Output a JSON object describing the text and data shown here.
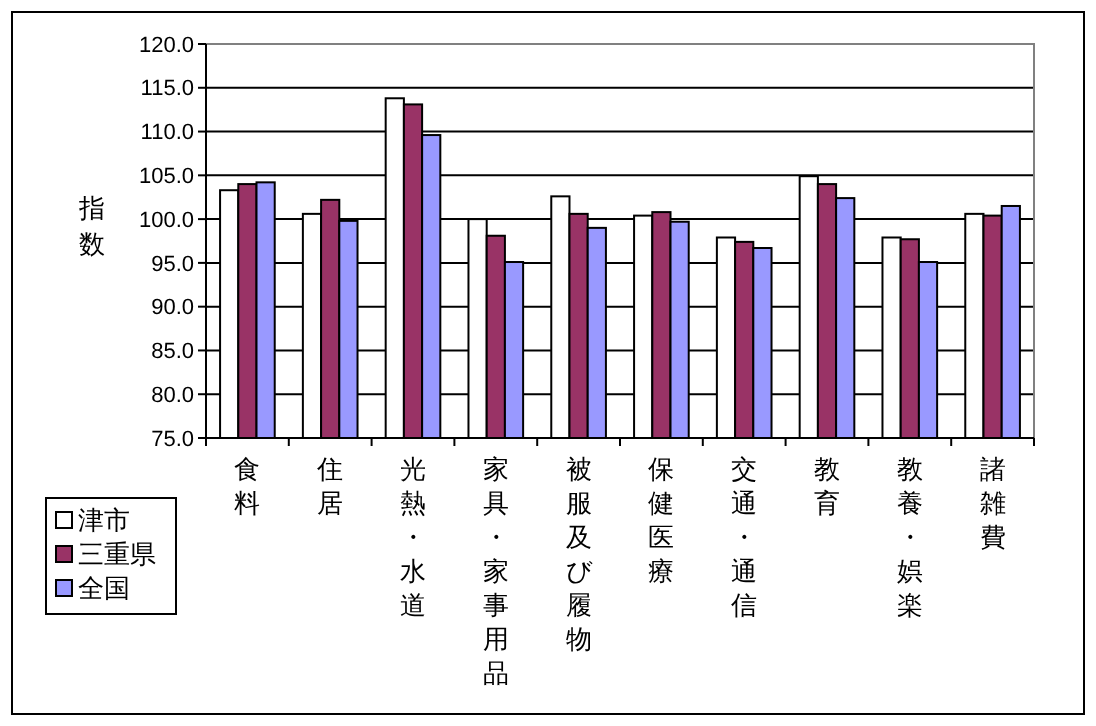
{
  "chart_data": {
    "type": "bar",
    "ylabel": "指数",
    "categories": [
      "食料",
      "住居",
      "光熱・水道",
      "家具・家事用品",
      "被服及び履物",
      "保健医療",
      "交通・通信",
      "教育",
      "教養・娯楽",
      "諸雑費"
    ],
    "series": [
      {
        "name": "津市",
        "color": "#ffffff",
        "values": [
          103.3,
          100.6,
          113.8,
          100.0,
          102.6,
          100.4,
          97.9,
          104.9,
          97.9,
          100.6
        ]
      },
      {
        "name": "三重県",
        "color": "#993366",
        "values": [
          104.0,
          102.2,
          113.1,
          98.1,
          100.6,
          100.8,
          97.4,
          104.0,
          97.7,
          100.4
        ]
      },
      {
        "name": "全国",
        "color": "#9999ff",
        "values": [
          104.2,
          99.8,
          109.6,
          95.1,
          99.0,
          99.7,
          96.7,
          102.4,
          95.1,
          101.5
        ]
      }
    ],
    "ylim": [
      75,
      120
    ],
    "yticks": [
      {
        "value": 75,
        "label": "75.0"
      },
      {
        "value": 80,
        "label": "80.0"
      },
      {
        "value": 85,
        "label": "85.0"
      },
      {
        "value": 90,
        "label": "90.0"
      },
      {
        "value": 95,
        "label": "95.0"
      },
      {
        "value": 100,
        "label": "100.0"
      },
      {
        "value": 105,
        "label": "105.0"
      },
      {
        "value": 110,
        "label": "110.0"
      },
      {
        "value": 115,
        "label": "115.0"
      },
      {
        "value": 120,
        "label": "120.0"
      }
    ],
    "grid": "y",
    "legend": "bottom left"
  }
}
